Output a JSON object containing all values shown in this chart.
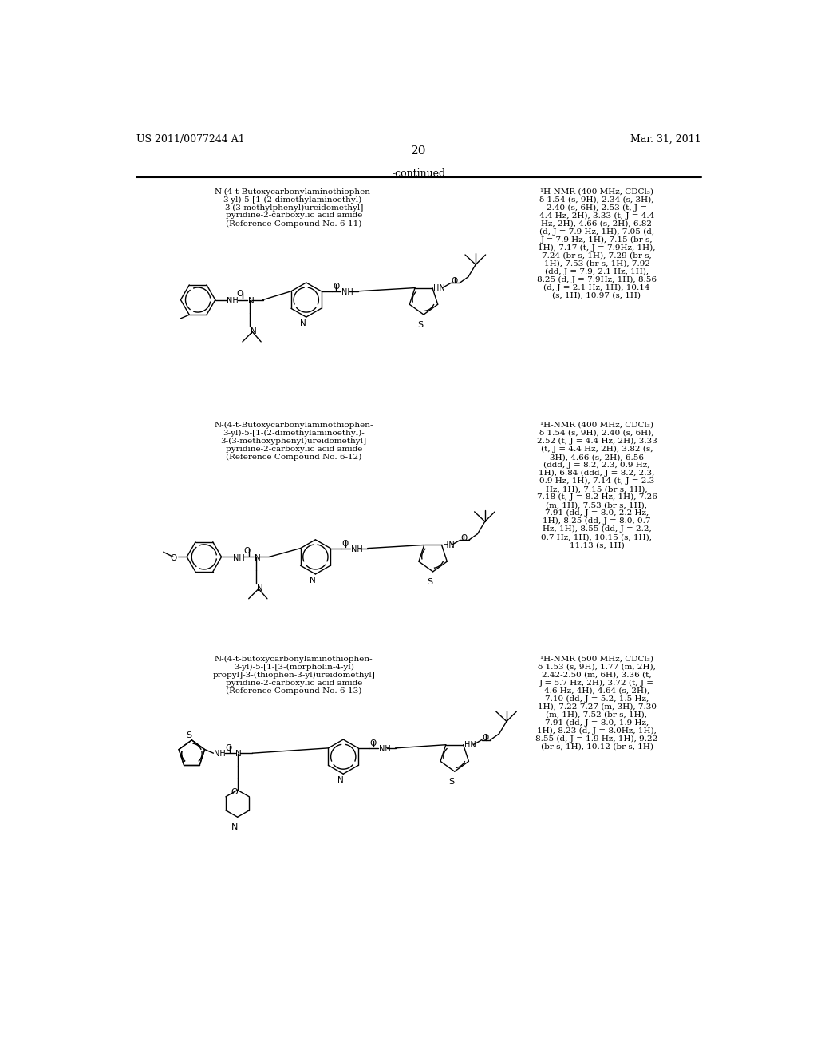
{
  "header_left": "US 2011/0077244 A1",
  "header_right": "Mar. 31, 2011",
  "page_number": "20",
  "continued_label": "-continued",
  "background_color": "#ffffff",
  "text_color": "#000000",
  "compounds": [
    {
      "id": "6-11",
      "name_lines": [
        "N-(4-t-Butoxycarbonylaminothiophen-",
        "3-yl)-5-[1-(2-dimethylaminoethyl)-",
        "3-(3-methylphenyl)ureidomethyl]",
        "pyridine-2-carboxylic acid amide",
        "(Reference Compound No. 6-11)"
      ],
      "nmr_lines": [
        "¹H-NMR (400 MHz, CDCl₃)",
        "δ 1.54 (s, 9H), 2.34 (s, 3H),",
        "2.40 (s, 6H), 2.53 (t, J =",
        "4.4 Hz, 2H), 3.33 (t, J = 4.4",
        "Hz, 2H), 4.66 (s, 2H), 6.82",
        "(d, J = 7.9 Hz, 1H), 7.05 (d,",
        "J = 7.9 Hz, 1H), 7.15 (br s,",
        "1H), 7.17 (t, J = 7.9Hz, 1H),",
        "7.24 (br s, 1H), 7.29 (br s,",
        "1H), 7.53 (br s, 1H), 7.92",
        "(dd, J = 7.9, 2.1 Hz, 1H),",
        "8.25 (d, J = 7.9Hz, 1H), 8.56",
        "(d, J = 2.1 Hz, 1H), 10.14",
        "(s, 1H), 10.97 (s, 1H)"
      ]
    },
    {
      "id": "6-12",
      "name_lines": [
        "N-(4-t-Butoxycarbonylaminothiophen-",
        "3-yl)-5-[1-(2-dimethylaminoethyl)-",
        "3-(3-methoxyphenyl)ureidomethyl]",
        "pyridine-2-carboxylic acid amide",
        "(Reference Compound No. 6-12)"
      ],
      "nmr_lines": [
        "¹H-NMR (400 MHz, CDCl₃)",
        "δ 1.54 (s, 9H), 2.40 (s, 6H),",
        "2.52 (t, J = 4.4 Hz, 2H), 3.33",
        "(t, J = 4.4 Hz, 2H), 3.82 (s,",
        "3H), 4.66 (s, 2H), 6.56",
        "(ddd, J = 8.2, 2.3, 0.9 Hz,",
        "1H), 6.84 (ddd, J = 8.2, 2.3,",
        "0.9 Hz, 1H), 7.14 (t, J = 2.3",
        "Hz, 1H), 7.15 (br s, 1H),",
        "7.18 (t, J = 8.2 Hz, 1H), 7.26",
        "(m, 1H), 7.53 (br s, 1H),",
        "7.91 (dd, J = 8.0, 2.2 Hz,",
        "1H), 8.25 (dd, J = 8.0, 0.7",
        "Hz, 1H), 8.55 (dd, J = 2.2,",
        "0.7 Hz, 1H), 10.15 (s, 1H),",
        "11.13 (s, 1H)"
      ]
    },
    {
      "id": "6-13",
      "name_lines": [
        "N-(4-t-butoxycarbonylaminothiophen-",
        "3-yl)-5-[1-[3-(morpholin-4-yl)",
        "propyl]-3-(thiophen-3-yl)ureidomethyl]",
        "pyridine-2-carboxylic acid amide",
        "(Reference Compound No. 6-13)"
      ],
      "nmr_lines": [
        "¹H-NMR (500 MHz, CDCl₃)",
        "δ 1.53 (s, 9H), 1.77 (m, 2H),",
        "2.42-2.50 (m, 6H), 3.36 (t,",
        "J = 5.7 Hz, 2H), 3.72 (t, J =",
        "4.6 Hz, 4H), 4.64 (s, 2H),",
        "7.10 (dd, J = 5.2, 1.5 Hz,",
        "1H), 7.22-7.27 (m, 3H), 7.30",
        "(m, 1H), 7.52 (br s, 1H),",
        "7.91 (dd, J = 8.0, 1.9 Hz,",
        "1H), 8.23 (d, J = 8.0Hz, 1H),",
        "8.55 (d, J = 1.9 Hz, 1H), 9.22",
        "(br s, 1H), 10.12 (br s, 1H)"
      ]
    }
  ]
}
